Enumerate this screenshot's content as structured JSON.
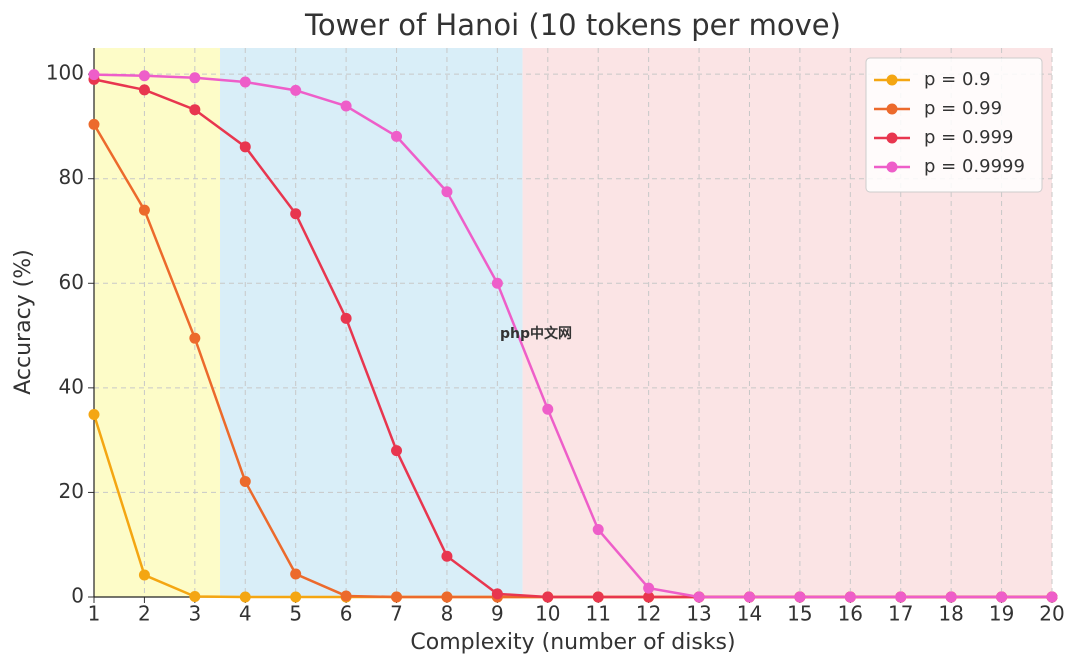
{
  "chart_data": {
    "type": "line",
    "title": "Tower of Hanoi (10 tokens per move)",
    "xlabel": "Complexity (number of disks)",
    "ylabel": "Accuracy (%)",
    "x": [
      1,
      2,
      3,
      4,
      5,
      6,
      7,
      8,
      9,
      10,
      11,
      12,
      13,
      14,
      15,
      16,
      17,
      18,
      19,
      20
    ],
    "series": [
      {
        "name": "p = 0.9",
        "color": "#f4a612",
        "values": [
          34.9,
          4.2,
          0.1,
          0,
          0,
          0,
          0,
          0,
          0,
          0,
          0,
          0,
          0,
          0,
          0,
          0,
          0,
          0,
          0,
          0
        ]
      },
      {
        "name": "p = 0.99",
        "color": "#ec6a2c",
        "values": [
          90.4,
          74,
          49.5,
          22.1,
          4.4,
          0.2,
          0,
          0,
          0,
          0,
          0,
          0,
          0,
          0,
          0,
          0,
          0,
          0,
          0,
          0
        ]
      },
      {
        "name": "p = 0.999",
        "color": "#e8364f",
        "values": [
          99,
          97,
          93.2,
          86.1,
          73.3,
          53.3,
          28,
          7.8,
          0.6,
          0,
          0,
          0,
          0,
          0,
          0,
          0,
          0,
          0,
          0,
          0
        ]
      },
      {
        "name": "p = 0.9999",
        "color": "#ee5ec9",
        "values": [
          99.9,
          99.7,
          99.3,
          98.5,
          96.9,
          93.9,
          88.1,
          77.5,
          60,
          35.9,
          12.9,
          1.7,
          0,
          0,
          0,
          0,
          0,
          0,
          0,
          0
        ]
      }
    ],
    "regions": [
      {
        "x0": 1,
        "x1": 3.5,
        "color": "#fdfcc8"
      },
      {
        "x0": 3.5,
        "x1": 9.5,
        "color": "#d9eef8"
      },
      {
        "x0": 9.5,
        "x1": 20,
        "color": "#fbe4e5"
      }
    ],
    "xlim": [
      1,
      20
    ],
    "xticks": [
      1,
      2,
      3,
      4,
      5,
      6,
      7,
      8,
      9,
      10,
      11,
      12,
      13,
      14,
      15,
      16,
      17,
      18,
      19,
      20
    ],
    "ylim": [
      0,
      105
    ],
    "yticks": [
      0,
      20,
      40,
      60,
      80,
      100
    ],
    "grid": true,
    "legend": "upper right",
    "watermark": "php中文网"
  }
}
